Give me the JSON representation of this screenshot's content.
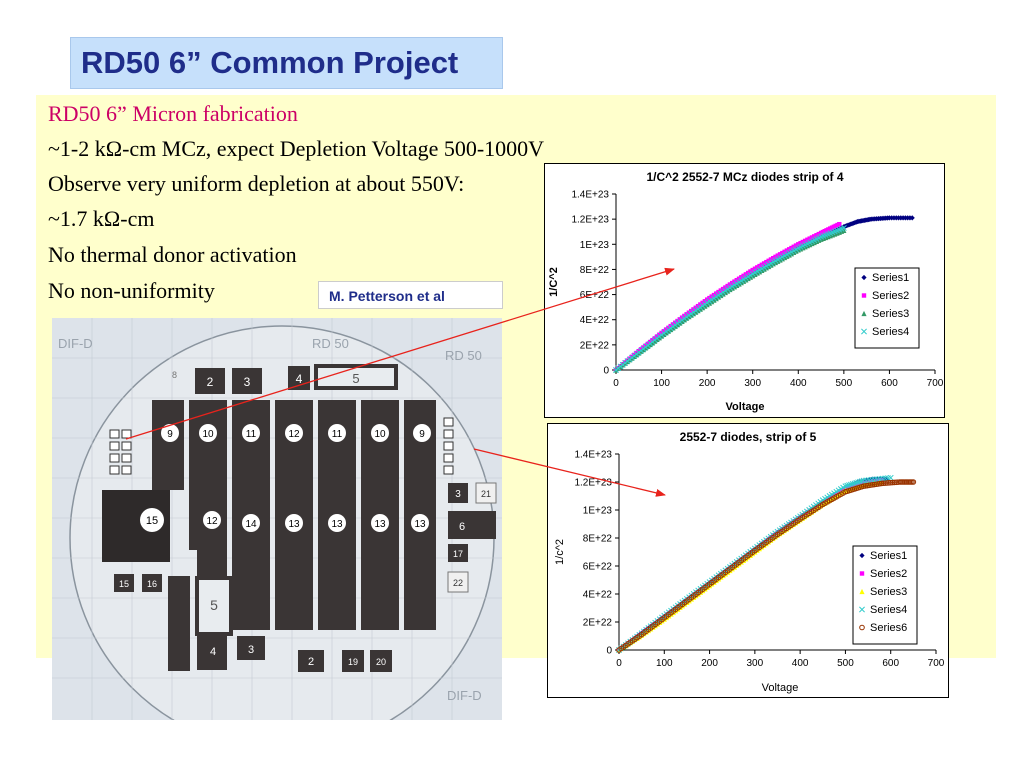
{
  "slide": {
    "title": "RD50 6” Common Project",
    "lines": [
      "RD50 6” Micron fabrication",
      " ~1-2 kΩ-cm MCz, expect Depletion Voltage 500-1000V",
      "Observe very uniform depletion at about 550V:",
      "~1.7 kΩ-cm",
      "No thermal donor activation",
      "No non-uniformity"
    ],
    "credit": "M. Petterson et al"
  },
  "colors": {
    "title_bg": "#c6e0fb",
    "title_text": "#1f2d8a",
    "content_bg": "#ffffcc",
    "heading_text": "#cc0066",
    "arrow": "#e8231c"
  },
  "wafer": {
    "labels": [
      "DIF-D",
      "RD 50",
      "RD 50",
      "DIF-D"
    ],
    "die_numbers": [
      "2",
      "3",
      "4",
      "5",
      "8",
      "9",
      "10",
      "11",
      "12",
      "11",
      "10",
      "9",
      "15",
      "12",
      "14",
      "13",
      "13",
      "13",
      "13",
      "3",
      "21",
      "6",
      "17",
      "22",
      "15",
      "16",
      "5",
      "4",
      "3",
      "2",
      "19",
      "20"
    ]
  },
  "chart_data": [
    {
      "type": "scatter",
      "title": "1/C^2 2552-7 MCz diodes strip of 4",
      "xlabel": "Voltage",
      "ylabel": "1/C^2",
      "xlim": [
        0,
        700
      ],
      "ylim": [
        0,
        1.4e+23
      ],
      "xticks": [
        "0",
        "100",
        "200",
        "300",
        "400",
        "500",
        "600",
        "700"
      ],
      "yticks": [
        "0",
        "2E+22",
        "4E+22",
        "6E+22",
        "8E+22",
        "1E+23",
        "1.2E+23",
        "1.4E+23"
      ],
      "legend_position": "right",
      "series": [
        {
          "name": "Series1",
          "color": "#000080",
          "marker": "diamond",
          "x": [
            0,
            50,
            100,
            150,
            200,
            250,
            300,
            350,
            400,
            450,
            500,
            530,
            560,
            600,
            650
          ],
          "y": [
            0,
            1.4e+22,
            2.75e+22,
            4.05e+22,
            5.3e+22,
            6.5e+22,
            7.6e+22,
            8.65e+22,
            9.7e+22,
            1.06e+23,
            1.14e+23,
            1.18e+23,
            1.2e+23,
            1.21e+23,
            1.21e+23
          ]
        },
        {
          "name": "Series2",
          "color": "#ff00ff",
          "marker": "square",
          "x": [
            0,
            50,
            100,
            150,
            200,
            250,
            300,
            350,
            400,
            450,
            490
          ],
          "y": [
            0,
            1.5e+22,
            2.95e+22,
            4.3e+22,
            5.6e+22,
            6.8e+22,
            7.95e+22,
            9e+22,
            1e+23,
            1.09e+23,
            1.16e+23
          ]
        },
        {
          "name": "Series3",
          "color": "#339966",
          "marker": "triangle",
          "x": [
            0,
            50,
            100,
            150,
            200,
            250,
            300,
            350,
            400,
            450,
            500
          ],
          "y": [
            0,
            1.35e+22,
            2.7e+22,
            4e+22,
            5.2e+22,
            6.4e+22,
            7.5e+22,
            8.55e+22,
            9.55e+22,
            1.04e+23,
            1.11e+23
          ]
        },
        {
          "name": "Series4",
          "color": "#33cccc",
          "marker": "x",
          "x": [
            0,
            50,
            100,
            150,
            200,
            250,
            300,
            350,
            400,
            450,
            500
          ],
          "y": [
            0,
            1.4e+22,
            2.8e+22,
            4.1e+22,
            5.35e+22,
            6.55e+22,
            7.65e+22,
            8.7e+22,
            9.7e+22,
            1.06e+23,
            1.13e+23
          ]
        }
      ]
    },
    {
      "type": "scatter",
      "title": "2552-7 diodes, strip of 5",
      "xlabel": "Voltage",
      "ylabel": "1/c^2",
      "xlim": [
        0,
        700
      ],
      "ylim": [
        0,
        1.4e+23
      ],
      "xticks": [
        "0",
        "100",
        "200",
        "300",
        "400",
        "500",
        "600",
        "700"
      ],
      "yticks": [
        "0",
        "2E+22",
        "4E+22",
        "6E+22",
        "8E+22",
        "1E+23",
        "1.2E+23",
        "1.4E+23"
      ],
      "legend_position": "right",
      "series": [
        {
          "name": "Series1",
          "color": "#000080",
          "marker": "diamond",
          "x": [
            0,
            50,
            100,
            150,
            200,
            250,
            300,
            350,
            400,
            450,
            500,
            530,
            560,
            590
          ],
          "y": [
            0,
            1.2e+22,
            2.4e+22,
            3.6e+22,
            4.8e+22,
            6e+22,
            7.2e+22,
            8.4e+22,
            9.5e+22,
            1.06e+23,
            1.16e+23,
            1.2e+23,
            1.22e+23,
            1.22e+23
          ]
        },
        {
          "name": "Series2",
          "color": "#ff00ff",
          "marker": "square",
          "x": [
            0,
            50,
            100,
            150,
            200,
            250,
            300,
            350,
            400,
            450,
            500,
            540,
            580
          ],
          "y": [
            0,
            1.15e+22,
            2.3e+22,
            3.5e+22,
            4.7e+22,
            5.9e+22,
            7.1e+22,
            8.3e+22,
            9.4e+22,
            1.05e+23,
            1.15e+23,
            1.19e+23,
            1.21e+23
          ]
        },
        {
          "name": "Series3",
          "color": "#ffff00",
          "marker": "triangle",
          "x": [
            0,
            50,
            100,
            150,
            200,
            250,
            300,
            350,
            400,
            450,
            500,
            540,
            580
          ],
          "y": [
            0,
            1.05e+22,
            2.2e+22,
            3.4e+22,
            4.6e+22,
            5.8e+22,
            7e+22,
            8.2e+22,
            9.3e+22,
            1.04e+23,
            1.14e+23,
            1.18e+23,
            1.2e+23
          ]
        },
        {
          "name": "Series4",
          "color": "#33cccc",
          "marker": "x",
          "x": [
            0,
            50,
            100,
            150,
            200,
            250,
            300,
            350,
            400,
            450,
            500,
            540,
            600
          ],
          "y": [
            0,
            1.2e+22,
            2.45e+22,
            3.65e+22,
            4.85e+22,
            6.05e+22,
            7.25e+22,
            8.45e+22,
            9.55e+22,
            1.07e+23,
            1.17e+23,
            1.21e+23,
            1.23e+23
          ]
        },
        {
          "name": "Series6",
          "color": "#993300",
          "marker": "circle",
          "x": [
            0,
            50,
            100,
            150,
            200,
            250,
            300,
            350,
            400,
            450,
            500,
            540,
            580,
            620,
            650
          ],
          "y": [
            0,
            1.1e+22,
            2.3e+22,
            3.5e+22,
            4.7e+22,
            5.9e+22,
            7.1e+22,
            8.25e+22,
            9.35e+22,
            1.04e+23,
            1.13e+23,
            1.17e+23,
            1.19e+23,
            1.2e+23,
            1.2e+23
          ]
        }
      ]
    }
  ]
}
